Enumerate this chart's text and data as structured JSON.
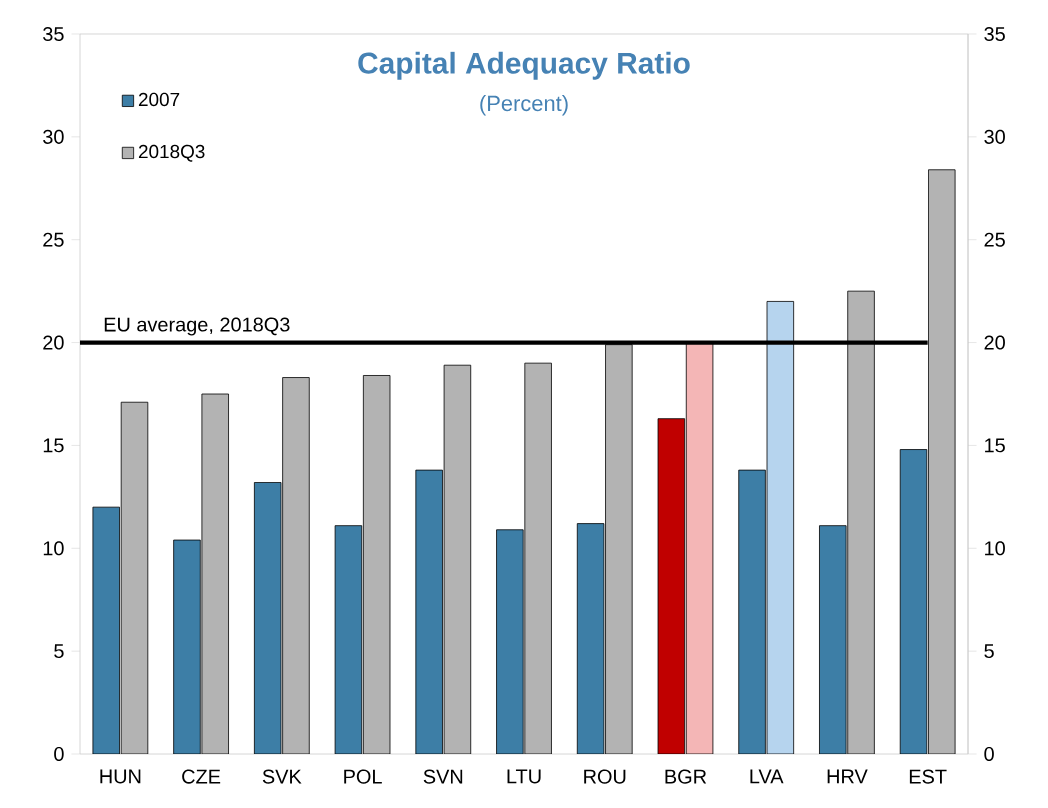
{
  "chart_data": {
    "type": "bar",
    "title": "Capital Adequacy Ratio",
    "subtitle": "(Percent)",
    "categories": [
      "HUN",
      "CZE",
      "SVK",
      "POL",
      "SVN",
      "LTU",
      "ROU",
      "BGR",
      "LVA",
      "HRV",
      "EST"
    ],
    "series": [
      {
        "name": "2007",
        "color": "#3d7ea6",
        "colors": [
          "#3d7ea6",
          "#3d7ea6",
          "#3d7ea6",
          "#3d7ea6",
          "#3d7ea6",
          "#3d7ea6",
          "#3d7ea6",
          "#c00000",
          "#3d7ea6",
          "#3d7ea6",
          "#3d7ea6"
        ],
        "values": [
          12.0,
          10.4,
          13.2,
          11.1,
          13.8,
          10.9,
          11.2,
          16.3,
          13.8,
          11.1,
          14.8
        ]
      },
      {
        "name": "2018Q3",
        "color": "#b3b3b3",
        "colors": [
          "#b3b3b3",
          "#b3b3b3",
          "#b3b3b3",
          "#b3b3b3",
          "#b3b3b3",
          "#b3b3b3",
          "#b3b3b3",
          "#f4b6b6",
          "#b6d4ee",
          "#b3b3b3",
          "#b3b3b3"
        ],
        "values": [
          17.1,
          17.5,
          18.3,
          18.4,
          18.9,
          19.0,
          19.9,
          20.0,
          22.0,
          22.5,
          28.4
        ]
      }
    ],
    "ylim": [
      0,
      35
    ],
    "yticks": [
      0,
      5,
      10,
      15,
      20,
      25,
      30,
      35
    ],
    "y2lim": [
      0,
      35
    ],
    "y2ticks": [
      0,
      5,
      10,
      15,
      20,
      25,
      30,
      35
    ],
    "ref_lines": [
      {
        "axis": "y",
        "value": 20,
        "label": "EU average, 2018Q3",
        "color": "#000000"
      }
    ],
    "legend": "top left",
    "grid": false
  }
}
